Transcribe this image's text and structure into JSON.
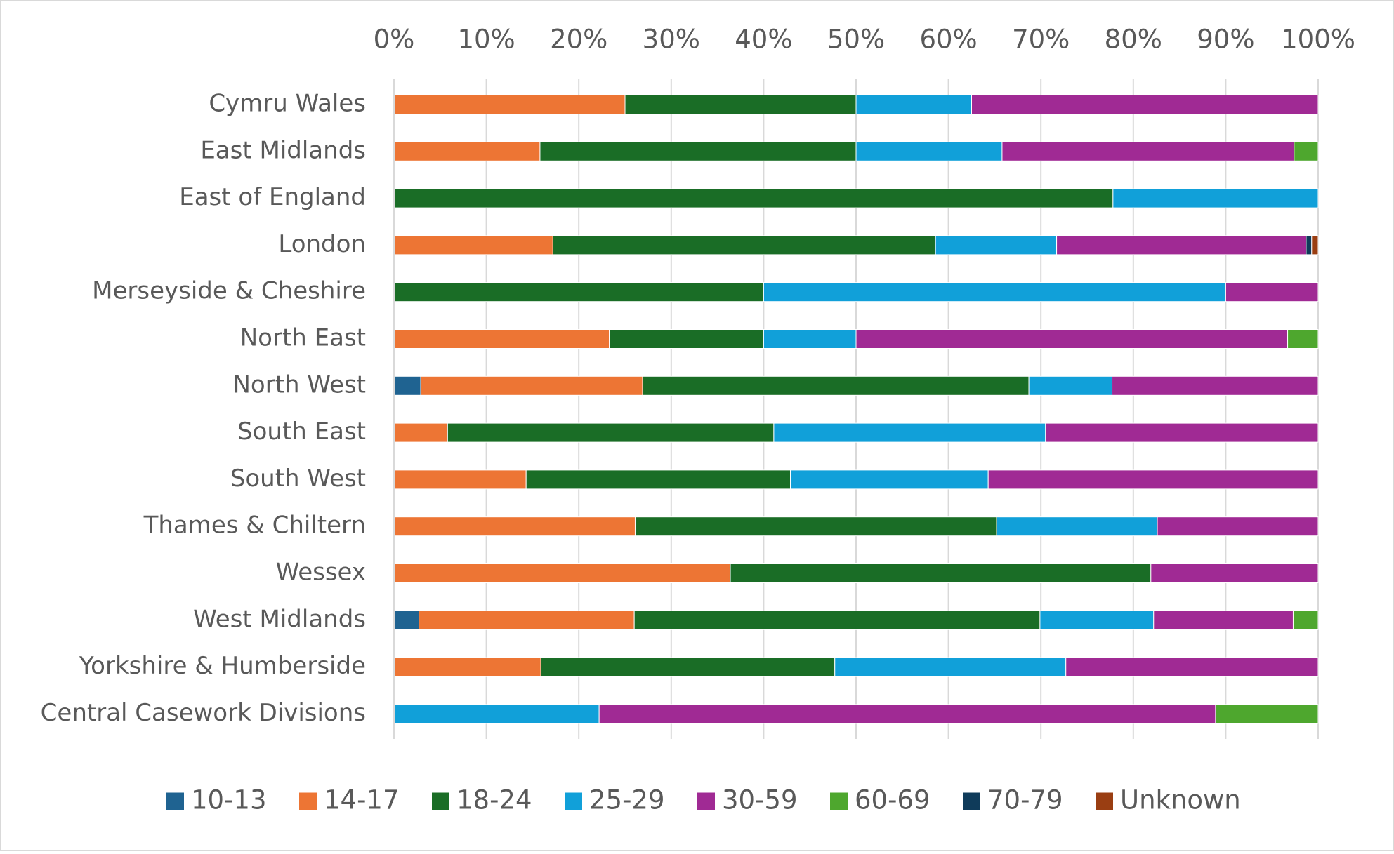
{
  "chart_data": {
    "type": "bar",
    "orientation": "horizontal",
    "stacked": "percent",
    "title": "",
    "xlabel": "",
    "ylabel": "",
    "xlim": [
      0,
      100
    ],
    "x_ticks": [
      "0%",
      "10%",
      "20%",
      "30%",
      "40%",
      "50%",
      "60%",
      "70%",
      "80%",
      "90%",
      "100%"
    ],
    "x_axis_position": "top",
    "grid": "vertical",
    "legend_position": "bottom",
    "categories": [
      "Cymru Wales",
      "East Midlands",
      "East of England",
      "London",
      "Merseyside & Cheshire",
      "North East",
      "North West",
      "South East",
      "South West",
      "Thames & Chiltern",
      "Wessex",
      "West Midlands",
      "Yorkshire & Humberside",
      "Central Casework Divisions"
    ],
    "series": [
      {
        "name": "10-13",
        "color": "#1f6391",
        "values": [
          0,
          0,
          0,
          0,
          0,
          0,
          2.9,
          0,
          0,
          0,
          0,
          2.7,
          0,
          0
        ]
      },
      {
        "name": "14-17",
        "color": "#ed7534",
        "values": [
          25,
          15.8,
          0,
          17.2,
          0,
          23.3,
          24,
          5.8,
          14.3,
          26.1,
          36.4,
          23.3,
          15.9,
          0
        ]
      },
      {
        "name": "18-24",
        "color": "#1a6d26",
        "values": [
          25,
          34.2,
          77.8,
          41.4,
          40,
          16.7,
          41.8,
          35.3,
          28.6,
          39.1,
          45.5,
          43.9,
          31.8,
          0
        ]
      },
      {
        "name": "25-29",
        "color": "#11a0d9",
        "values": [
          12.5,
          15.8,
          22.2,
          13.1,
          50,
          10,
          9,
          29.4,
          21.4,
          17.4,
          0,
          12.3,
          25,
          22.2
        ]
      },
      {
        "name": "30-59",
        "color": "#a02a94",
        "values": [
          37.5,
          31.6,
          0,
          27,
          10,
          46.7,
          22.3,
          29.5,
          35.7,
          17.4,
          18.1,
          15.1,
          27.3,
          66.7
        ]
      },
      {
        "name": "60-69",
        "color": "#4ea72e",
        "values": [
          0,
          2.6,
          0,
          0,
          0,
          3.3,
          0,
          0,
          0,
          0,
          0,
          2.7,
          0,
          11.1
        ]
      },
      {
        "name": "70-79",
        "color": "#0f3b5a",
        "values": [
          0,
          0,
          0,
          0.6,
          0,
          0,
          0,
          0,
          0,
          0,
          0,
          0,
          0,
          0
        ]
      },
      {
        "name": "Unknown",
        "color": "#9a3e12",
        "values": [
          0,
          0,
          0,
          0.7,
          0,
          0,
          0,
          0,
          0,
          0,
          0,
          0,
          0,
          0
        ]
      }
    ]
  }
}
